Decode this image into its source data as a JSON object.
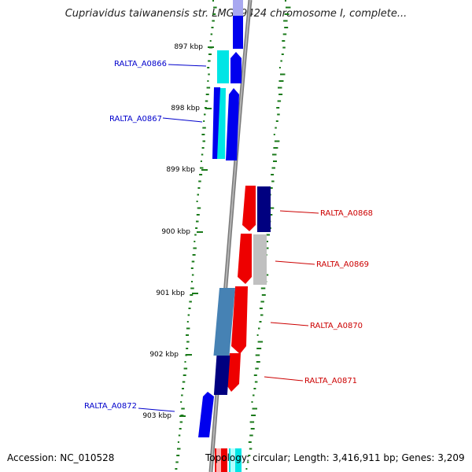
{
  "title": "Cupriavidus taiwanensis str. LMG19424 chromosome I, complete...",
  "footer": {
    "accession": "Accession: NC_010528",
    "topology": "Topology: circular; Length: 3,416,911 bp; Genes: 3,209"
  },
  "ticks": [
    "897 kbp",
    "898 kbp",
    "899 kbp",
    "900 kbp",
    "901 kbp",
    "902 kbp",
    "903 kbp"
  ],
  "genes": [
    {
      "label": "RALTA_A0866",
      "strand": "forward",
      "color": "#0000cc"
    },
    {
      "label": "RALTA_A0867",
      "strand": "forward",
      "color": "#0000cc"
    },
    {
      "label": "RALTA_A0868",
      "strand": "reverse",
      "color": "#cc0000"
    },
    {
      "label": "RALTA_A0869",
      "strand": "reverse",
      "color": "#cc0000"
    },
    {
      "label": "RALTA_A0870",
      "strand": "reverse",
      "color": "#cc0000"
    },
    {
      "label": "RALTA_A0871",
      "strand": "reverse",
      "color": "#cc0000"
    },
    {
      "label": "RALTA_A0872",
      "strand": "forward",
      "color": "#0000cc"
    }
  ],
  "colors": {
    "backbone": "#8a8a8a",
    "forward_gene": "#0000ee",
    "reverse_gene": "#ee0000",
    "cyan_gene": "#00e5e5",
    "navy_gene": "#000080",
    "steel_gene": "#4682b4",
    "silver_gene": "#c0c0c0",
    "gc_dots": "#1a7a1a"
  }
}
